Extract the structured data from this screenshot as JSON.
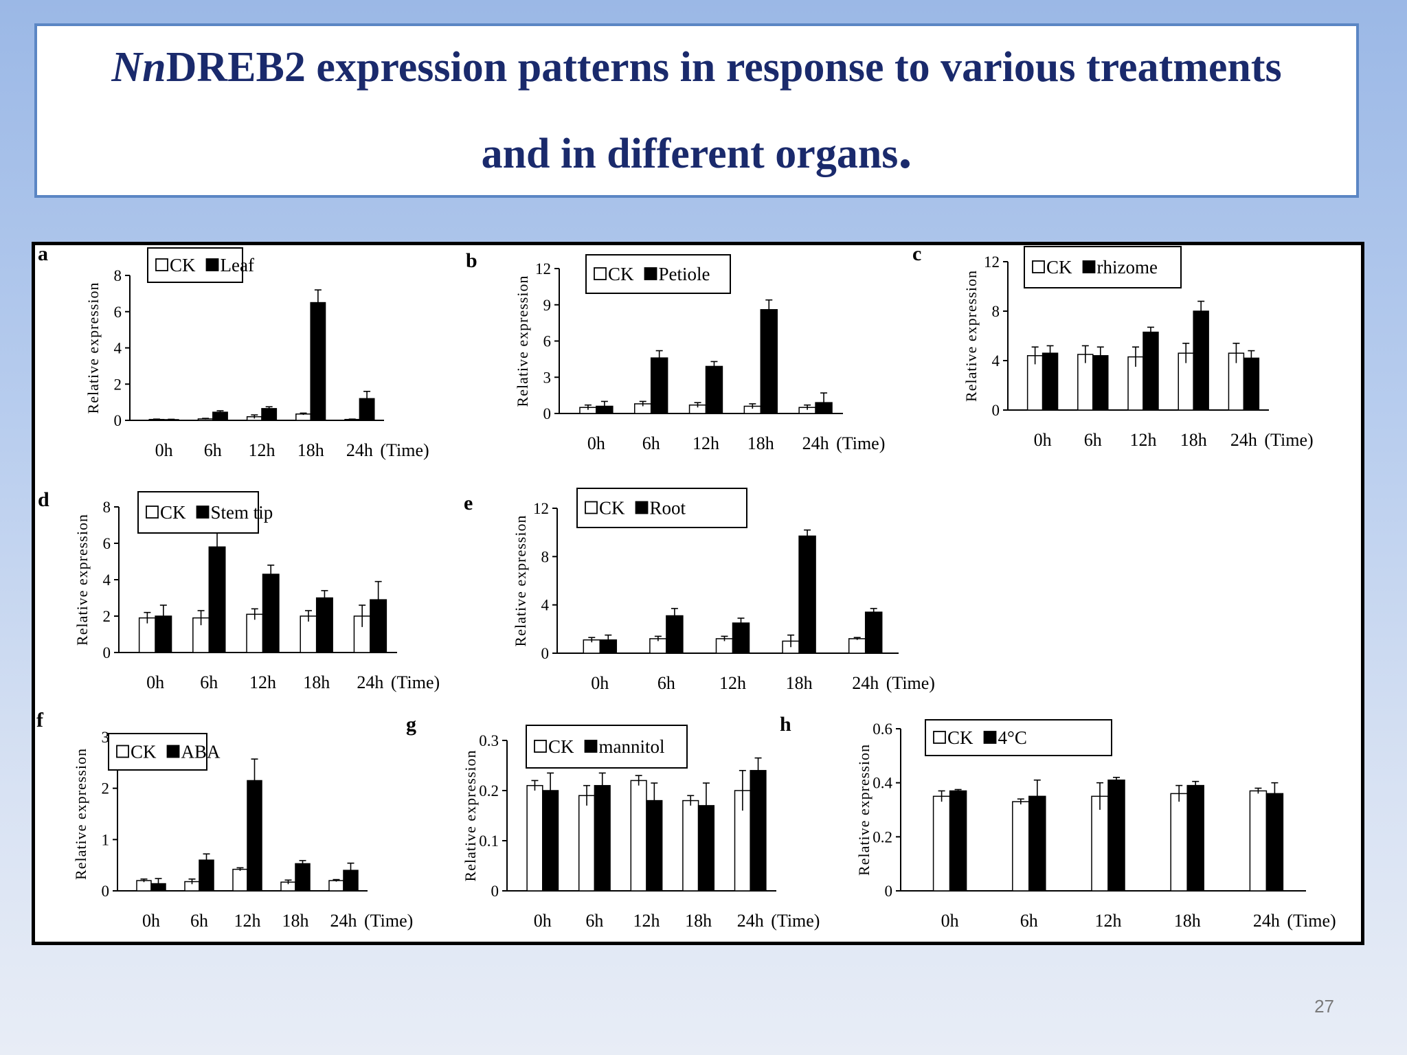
{
  "slide": {
    "title_italic": "Nn",
    "title_rest": "DREB2 expression patterns in response to various treatments",
    "title_line2": "and in different organs",
    "title_end": ".",
    "page_number": "27"
  },
  "chart_data": [
    {
      "panel": "a",
      "type": "bar",
      "ylabel": "Relative expression",
      "xlabel": "(Time)",
      "categories": [
        "0h",
        "6h",
        "12h",
        "18h",
        "24h"
      ],
      "ylim": [
        0,
        8
      ],
      "yticks": [
        "0",
        "2",
        "4",
        "6",
        "8"
      ],
      "series": [
        {
          "name": "CK",
          "values": [
            0.05,
            0.08,
            0.2,
            0.35,
            0.05
          ],
          "errors": [
            0.02,
            0.03,
            0.1,
            0.05,
            0.02
          ]
        },
        {
          "name": "Leaf",
          "values": [
            0.04,
            0.45,
            0.65,
            6.5,
            1.2
          ],
          "errors": [
            0.02,
            0.08,
            0.1,
            0.7,
            0.4
          ]
        }
      ]
    },
    {
      "panel": "b",
      "type": "bar",
      "ylabel": "Relative expression",
      "xlabel": "(Time)",
      "categories": [
        "0h",
        "6h",
        "12h",
        "18h",
        "24h"
      ],
      "ylim": [
        0,
        12
      ],
      "yticks": [
        "0",
        "3",
        "6",
        "9",
        "12"
      ],
      "series": [
        {
          "name": "CK",
          "values": [
            0.5,
            0.8,
            0.7,
            0.6,
            0.5
          ],
          "errors": [
            0.2,
            0.2,
            0.2,
            0.2,
            0.2
          ]
        },
        {
          "name": "Petiole",
          "values": [
            0.6,
            4.6,
            3.9,
            8.6,
            0.9
          ],
          "errors": [
            0.4,
            0.6,
            0.4,
            0.8,
            0.8
          ]
        }
      ]
    },
    {
      "panel": "c",
      "type": "bar",
      "ylabel": "Relative expression",
      "xlabel": "(Time)",
      "categories": [
        "0h",
        "6h",
        "12h",
        "18h",
        "24h"
      ],
      "ylim": [
        0,
        12
      ],
      "yticks": [
        "0",
        "4",
        "8",
        "12"
      ],
      "series": [
        {
          "name": "CK",
          "values": [
            4.4,
            4.5,
            4.3,
            4.6,
            4.6
          ],
          "errors": [
            0.7,
            0.7,
            0.8,
            0.8,
            0.8
          ]
        },
        {
          "name": "rhizome",
          "values": [
            4.6,
            4.4,
            6.3,
            8.0,
            4.2
          ],
          "errors": [
            0.6,
            0.7,
            0.4,
            0.8,
            0.6
          ]
        }
      ]
    },
    {
      "panel": "d",
      "type": "bar",
      "ylabel": "Relative expression",
      "xlabel": "(Time)",
      "categories": [
        "0h",
        "6h",
        "12h",
        "18h",
        "24h"
      ],
      "ylim": [
        0,
        8
      ],
      "yticks": [
        "0",
        "2",
        "4",
        "6",
        "8"
      ],
      "series": [
        {
          "name": "CK",
          "values": [
            1.9,
            1.9,
            2.1,
            2.0,
            2.0
          ],
          "errors": [
            0.3,
            0.4,
            0.3,
            0.3,
            0.6
          ]
        },
        {
          "name": "Stem tip",
          "values": [
            2.0,
            5.8,
            4.3,
            3.0,
            2.9
          ],
          "errors": [
            0.6,
            0.8,
            0.5,
            0.4,
            1.0
          ]
        }
      ]
    },
    {
      "panel": "e",
      "type": "bar",
      "ylabel": "Relative expression",
      "xlabel": "(Time)",
      "categories": [
        "0h",
        "6h",
        "12h",
        "18h",
        "24h"
      ],
      "ylim": [
        0,
        12
      ],
      "yticks": [
        "0",
        "4",
        "8",
        "12"
      ],
      "series": [
        {
          "name": "CK",
          "values": [
            1.1,
            1.2,
            1.2,
            1.0,
            1.2
          ],
          "errors": [
            0.2,
            0.2,
            0.2,
            0.5,
            0.1
          ]
        },
        {
          "name": "Root",
          "values": [
            1.1,
            3.1,
            2.5,
            9.7,
            3.4
          ],
          "errors": [
            0.4,
            0.6,
            0.4,
            0.5,
            0.3
          ]
        }
      ]
    },
    {
      "panel": "f",
      "type": "bar",
      "ylabel": "Relative expression",
      "xlabel": "(Time)",
      "categories": [
        "0h",
        "6h",
        "12h",
        "18h",
        "24h"
      ],
      "ylim": [
        0,
        3
      ],
      "yticks": [
        "0",
        "1",
        "2",
        "3"
      ],
      "series": [
        {
          "name": "CK",
          "values": [
            0.2,
            0.18,
            0.42,
            0.17,
            0.2
          ],
          "errors": [
            0.03,
            0.05,
            0.03,
            0.04,
            0.02
          ]
        },
        {
          "name": "ABA",
          "values": [
            0.14,
            0.6,
            2.15,
            0.53,
            0.4
          ],
          "errors": [
            0.1,
            0.12,
            0.42,
            0.06,
            0.14
          ]
        }
      ]
    },
    {
      "panel": "g",
      "type": "bar",
      "ylabel": "Relative expression",
      "xlabel": "(Time)",
      "categories": [
        "0h",
        "6h",
        "12h",
        "18h",
        "24h"
      ],
      "ylim": [
        0,
        0.3
      ],
      "yticks": [
        "0",
        "0.1",
        "0.2",
        "0.3"
      ],
      "series": [
        {
          "name": "CK",
          "values": [
            0.21,
            0.19,
            0.22,
            0.18,
            0.2
          ],
          "errors": [
            0.01,
            0.02,
            0.01,
            0.01,
            0.04
          ]
        },
        {
          "name": "mannitol",
          "values": [
            0.2,
            0.21,
            0.18,
            0.17,
            0.24
          ],
          "errors": [
            0.035,
            0.025,
            0.035,
            0.045,
            0.025
          ]
        }
      ]
    },
    {
      "panel": "h",
      "type": "bar",
      "ylabel": "Relative expression",
      "xlabel": "(Time)",
      "categories": [
        "0h",
        "6h",
        "12h",
        "18h",
        "24h"
      ],
      "ylim": [
        0,
        0.6
      ],
      "yticks": [
        "0",
        "0.2",
        "0.4",
        "0.6"
      ],
      "series": [
        {
          "name": "CK",
          "values": [
            0.35,
            0.33,
            0.35,
            0.36,
            0.37
          ],
          "errors": [
            0.02,
            0.01,
            0.05,
            0.03,
            0.01
          ]
        },
        {
          "name": "4°C",
          "values": [
            0.37,
            0.35,
            0.41,
            0.39,
            0.36
          ],
          "errors": [
            0.005,
            0.06,
            0.01,
            0.015,
            0.04
          ]
        }
      ]
    }
  ]
}
